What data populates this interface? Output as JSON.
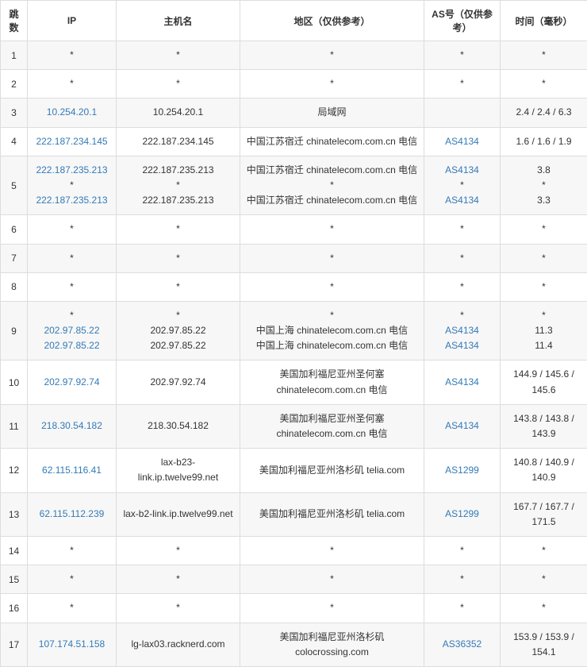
{
  "headers": {
    "hop": "跳数",
    "ip": "IP",
    "host": "主机名",
    "geo": "地区（仅供参考）",
    "asn": "AS号（仅供参考）",
    "time": "时间（毫秒）"
  },
  "link_color": "#337ab7",
  "rows": [
    {
      "hop": "1",
      "ip": [
        "*"
      ],
      "host": [
        "*"
      ],
      "geo": [
        "*"
      ],
      "asn": [
        "*"
      ],
      "time": [
        "*"
      ]
    },
    {
      "hop": "2",
      "ip": [
        "*"
      ],
      "host": [
        "*"
      ],
      "geo": [
        "*"
      ],
      "asn": [
        "*"
      ],
      "time": [
        "*"
      ]
    },
    {
      "hop": "3",
      "ip": [
        "10.254.20.1"
      ],
      "ip_link": [
        true
      ],
      "host": [
        "10.254.20.1"
      ],
      "geo": [
        "局域网"
      ],
      "asn": [
        ""
      ],
      "time": [
        "2.4 / 2.4 / 6.3"
      ]
    },
    {
      "hop": "4",
      "ip": [
        "222.187.234.145"
      ],
      "ip_link": [
        true
      ],
      "host": [
        "222.187.234.145"
      ],
      "geo": [
        "中国江苏宿迁 chinatelecom.com.cn 电信"
      ],
      "asn": [
        "AS4134"
      ],
      "asn_link": [
        true
      ],
      "time": [
        "1.6 / 1.6 / 1.9"
      ]
    },
    {
      "hop": "5",
      "ip": [
        "222.187.235.213",
        "*",
        "222.187.235.213"
      ],
      "ip_link": [
        true,
        false,
        true
      ],
      "host": [
        "222.187.235.213",
        "*",
        "222.187.235.213"
      ],
      "geo": [
        "中国江苏宿迁 chinatelecom.com.cn 电信",
        "*",
        "中国江苏宿迁 chinatelecom.com.cn 电信"
      ],
      "asn": [
        "AS4134",
        "*",
        "AS4134"
      ],
      "asn_link": [
        true,
        false,
        true
      ],
      "time": [
        "3.8",
        "*",
        "3.3"
      ]
    },
    {
      "hop": "6",
      "ip": [
        "*"
      ],
      "host": [
        "*"
      ],
      "geo": [
        "*"
      ],
      "asn": [
        "*"
      ],
      "time": [
        "*"
      ]
    },
    {
      "hop": "7",
      "ip": [
        "*"
      ],
      "host": [
        "*"
      ],
      "geo": [
        "*"
      ],
      "asn": [
        "*"
      ],
      "time": [
        "*"
      ]
    },
    {
      "hop": "8",
      "ip": [
        "*"
      ],
      "host": [
        "*"
      ],
      "geo": [
        "*"
      ],
      "asn": [
        "*"
      ],
      "time": [
        "*"
      ]
    },
    {
      "hop": "9",
      "ip": [
        "*",
        "202.97.85.22",
        "202.97.85.22"
      ],
      "ip_link": [
        false,
        true,
        true
      ],
      "host": [
        "*",
        "202.97.85.22",
        "202.97.85.22"
      ],
      "geo": [
        "*",
        "中国上海 chinatelecom.com.cn 电信",
        "中国上海 chinatelecom.com.cn 电信"
      ],
      "asn": [
        "*",
        "AS4134",
        "AS4134"
      ],
      "asn_link": [
        false,
        true,
        true
      ],
      "time": [
        "*",
        "11.3",
        "11.4"
      ]
    },
    {
      "hop": "10",
      "ip": [
        "202.97.92.74"
      ],
      "ip_link": [
        true
      ],
      "host": [
        "202.97.92.74"
      ],
      "geo": [
        "美国加利福尼亚州圣何塞 chinatelecom.com.cn 电信"
      ],
      "asn": [
        "AS4134"
      ],
      "asn_link": [
        true
      ],
      "time": [
        "144.9 / 145.6 / 145.6"
      ]
    },
    {
      "hop": "11",
      "ip": [
        "218.30.54.182"
      ],
      "ip_link": [
        true
      ],
      "host": [
        "218.30.54.182"
      ],
      "geo": [
        "美国加利福尼亚州圣何塞 chinatelecom.com.cn 电信"
      ],
      "asn": [
        "AS4134"
      ],
      "asn_link": [
        true
      ],
      "time": [
        "143.8 / 143.8 / 143.9"
      ]
    },
    {
      "hop": "12",
      "ip": [
        "62.115.116.41"
      ],
      "ip_link": [
        true
      ],
      "host": [
        "lax-b23-link.ip.twelve99.net"
      ],
      "geo": [
        "美国加利福尼亚州洛杉矶 telia.com"
      ],
      "asn": [
        "AS1299"
      ],
      "asn_link": [
        true
      ],
      "time": [
        "140.8 / 140.9 / 140.9"
      ]
    },
    {
      "hop": "13",
      "ip": [
        "62.115.112.239"
      ],
      "ip_link": [
        true
      ],
      "host": [
        "lax-b2-link.ip.twelve99.net"
      ],
      "geo": [
        "美国加利福尼亚州洛杉矶 telia.com"
      ],
      "asn": [
        "AS1299"
      ],
      "asn_link": [
        true
      ],
      "time": [
        "167.7 / 167.7 / 171.5"
      ]
    },
    {
      "hop": "14",
      "ip": [
        "*"
      ],
      "host": [
        "*"
      ],
      "geo": [
        "*"
      ],
      "asn": [
        "*"
      ],
      "time": [
        "*"
      ]
    },
    {
      "hop": "15",
      "ip": [
        "*"
      ],
      "host": [
        "*"
      ],
      "geo": [
        "*"
      ],
      "asn": [
        "*"
      ],
      "time": [
        "*"
      ]
    },
    {
      "hop": "16",
      "ip": [
        "*"
      ],
      "host": [
        "*"
      ],
      "geo": [
        "*"
      ],
      "asn": [
        "*"
      ],
      "time": [
        "*"
      ]
    },
    {
      "hop": "17",
      "ip": [
        "107.174.51.158"
      ],
      "ip_link": [
        true
      ],
      "host": [
        "lg-lax03.racknerd.com"
      ],
      "geo": [
        "美国加利福尼亚州洛杉矶 colocrossing.com"
      ],
      "asn": [
        "AS36352"
      ],
      "asn_link": [
        true
      ],
      "time": [
        "153.9 / 153.9 / 154.1"
      ]
    }
  ]
}
